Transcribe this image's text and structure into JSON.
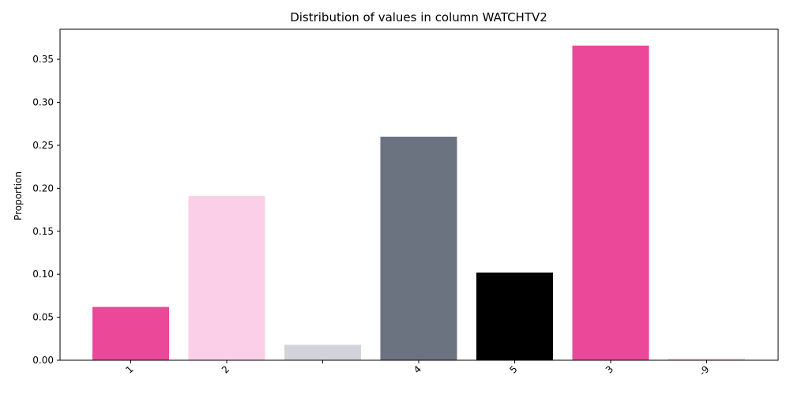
{
  "chart_data": {
    "type": "bar",
    "title": "Distribution of values in column WATCHTV2",
    "xlabel": "",
    "ylabel": "Proportion",
    "categories": [
      "1",
      "2",
      "",
      "4",
      "5",
      "3",
      "-9"
    ],
    "values": [
      0.062,
      0.191,
      0.018,
      0.26,
      0.102,
      0.366,
      0.002
    ],
    "colors": [
      "#ec4899",
      "#fbcfe8",
      "#d1d5db",
      "#6b7280",
      "#000000",
      "#ec4899",
      "#fbcfe8"
    ],
    "ylim": [
      0,
      0.385
    ],
    "yticks": [
      0.0,
      0.05,
      0.1,
      0.15,
      0.2,
      0.25,
      0.3,
      0.35
    ],
    "ytick_labels": [
      "0.00",
      "0.05",
      "0.10",
      "0.15",
      "0.20",
      "0.25",
      "0.30",
      "0.35"
    ],
    "grid": false,
    "legend": "none"
  }
}
